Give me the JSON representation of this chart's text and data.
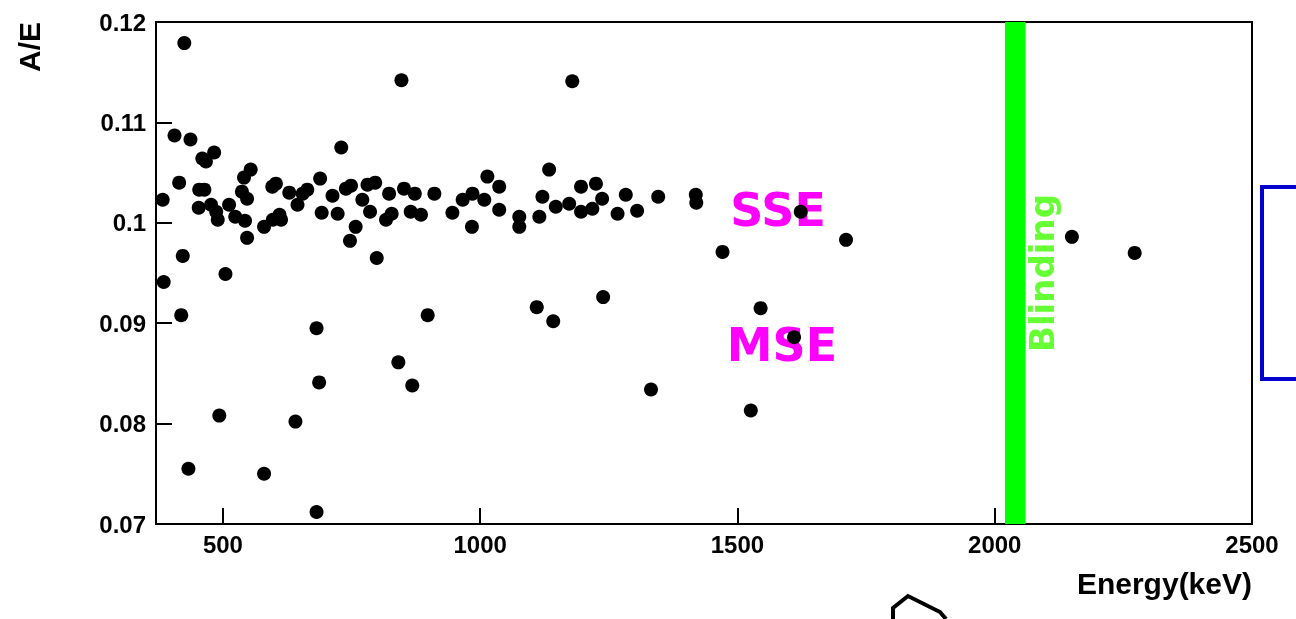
{
  "chart_data": {
    "type": "scatter",
    "xlabel": "Energy(keV)",
    "ylabel": "A/E",
    "x": [
      425,
      847,
      406,
      437,
      730,
      460,
      483,
      467,
      415,
      383,
      554,
      541,
      537,
      547,
      454,
      464,
      453,
      477,
      487,
      490,
      512,
      524,
      543,
      547,
      596,
      603,
      629,
      655,
      664,
      645,
      580,
      597,
      610,
      613,
      689,
      692,
      713,
      723,
      739,
      749,
      758,
      747,
      771,
      781,
      796,
      786,
      799,
      817,
      828,
      823,
      852,
      873,
      865,
      885,
      911,
      946,
      966,
      985,
      984,
      422,
      505,
      385,
      419,
      898,
      682,
      841,
      687,
      868,
      493,
      641,
      433,
      580,
      682,
      1179,
      1134,
      1014,
      1037,
      1008,
      1037,
      1076,
      1076,
      1121,
      1115,
      1147,
      1173,
      1196,
      1196,
      1225,
      1237,
      1218,
      1283,
      1267,
      1305,
      1346,
      1419,
      1420,
      1471,
      1110,
      1142,
      1239,
      1545,
      1332,
      1526,
      1610,
      1623,
      1711,
      2150,
      2272
    ],
    "series": [
      {
        "color": "#000000",
        "values": [
          0.1179,
          0.1142,
          0.1087,
          0.1083,
          0.1075,
          0.1064,
          0.107,
          0.1061,
          0.104,
          0.1023,
          0.1053,
          0.1045,
          0.1031,
          0.1024,
          0.1033,
          0.1033,
          0.1015,
          0.1018,
          0.1011,
          0.1003,
          0.1018,
          0.1006,
          0.1002,
          0.0985,
          0.1036,
          0.1039,
          0.103,
          0.1029,
          0.1033,
          0.1018,
          0.0996,
          0.1003,
          0.1008,
          0.1003,
          0.1044,
          0.101,
          0.1027,
          0.1009,
          0.1034,
          0.1037,
          0.0996,
          0.0982,
          0.1023,
          0.1038,
          0.104,
          0.1011,
          0.0965,
          0.1003,
          0.1009,
          0.1029,
          0.1034,
          0.1029,
          0.1011,
          0.1008,
          0.1029,
          0.101,
          0.1023,
          0.1029,
          0.0996,
          0.0967,
          0.0949,
          0.0941,
          0.0908,
          0.0908,
          0.0895,
          0.0861,
          0.0841,
          0.0838,
          0.0808,
          0.0802,
          0.0755,
          0.075,
          0.0712,
          0.1141,
          0.1053,
          0.1046,
          0.1036,
          0.1023,
          0.1013,
          0.1006,
          0.0996,
          0.1026,
          0.1006,
          0.1016,
          0.1019,
          0.1036,
          0.1011,
          0.1039,
          0.1024,
          0.1014,
          0.1028,
          0.1009,
          0.1012,
          0.1026,
          0.1028,
          0.102,
          0.0971,
          0.0916,
          0.0902,
          0.0926,
          0.0915,
          0.0834,
          0.0813,
          0.0886,
          0.1011,
          0.0983,
          0.0986,
          0.097
        ]
      }
    ],
    "xlim": [
      370,
      2500
    ],
    "xticks": [
      500,
      1000,
      1500,
      2000,
      2500
    ],
    "ylim": [
      0.07,
      0.12
    ],
    "yticks": [
      0.07,
      0.08,
      0.09,
      0.1,
      0.11,
      0.12
    ],
    "marker": "circle",
    "grid": false,
    "bands": [
      {
        "axis": "x",
        "from": 2020,
        "to": 2060,
        "label": "Blinding",
        "color": "#00ff00"
      }
    ],
    "annotations": [
      "SSE",
      "MSE"
    ]
  }
}
